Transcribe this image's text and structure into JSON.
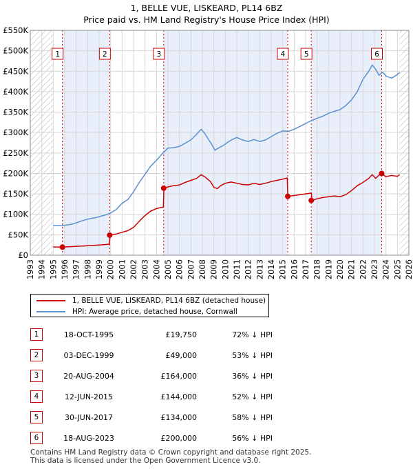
{
  "chart_data": {
    "type": "line",
    "title": "1, BELLE VUE, LISKEARD, PL14 6BZ",
    "subtitle": "Price paid vs. HM Land Registry's House Price Index (HPI)",
    "xlim": [
      1993,
      2026
    ],
    "ylim": [
      0,
      550000
    ],
    "x_ticks": [
      1993,
      1994,
      1995,
      1996,
      1997,
      1998,
      1999,
      2000,
      2001,
      2002,
      2003,
      2004,
      2005,
      2006,
      2007,
      2008,
      2009,
      2010,
      2011,
      2012,
      2013,
      2014,
      2015,
      2016,
      2017,
      2018,
      2019,
      2020,
      2021,
      2022,
      2023,
      2024,
      2025,
      2026
    ],
    "y_ticks": [
      {
        "value": 0,
        "label": "£0"
      },
      {
        "value": 50000,
        "label": "£50K"
      },
      {
        "value": 100000,
        "label": "£100K"
      },
      {
        "value": 150000,
        "label": "£150K"
      },
      {
        "value": 200000,
        "label": "£200K"
      },
      {
        "value": 250000,
        "label": "£250K"
      },
      {
        "value": 300000,
        "label": "£300K"
      },
      {
        "value": 350000,
        "label": "£350K"
      },
      {
        "value": 400000,
        "label": "£400K"
      },
      {
        "value": 450000,
        "label": "£450K"
      },
      {
        "value": 500000,
        "label": "£500K"
      },
      {
        "value": 550000,
        "label": "£550K"
      }
    ],
    "hatched_ranges": [
      [
        1993,
        1995.0
      ],
      [
        2025.2,
        2026
      ]
    ],
    "shaded_ranges": [
      [
        1995.8,
        1999.9
      ],
      [
        2004.6,
        2015.4
      ],
      [
        2017.5,
        2023.6
      ]
    ],
    "series": [
      {
        "name": "1, BELLE VUE, LISKEARD, PL14 6BZ (detached house)",
        "color": "#cc0000",
        "x": [
          1995.0,
          1995.8,
          1996.5,
          1997.5,
          1998.5,
          1999.5,
          1999.9,
          1999.95,
          2000.5,
          2001.0,
          2001.5,
          2002.0,
          2002.5,
          2003.0,
          2003.5,
          2004.0,
          2004.6,
          2004.65,
          2005.0,
          2005.5,
          2006.0,
          2006.5,
          2007.0,
          2007.5,
          2007.9,
          2008.3,
          2008.7,
          2009.0,
          2009.3,
          2009.6,
          2010.0,
          2010.5,
          2011.0,
          2011.5,
          2012.0,
          2012.5,
          2013.0,
          2013.5,
          2014.0,
          2014.5,
          2015.0,
          2015.4,
          2015.45,
          2016.0,
          2016.5,
          2017.0,
          2017.5,
          2017.55,
          2018.0,
          2018.5,
          2019.0,
          2019.5,
          2020.0,
          2020.5,
          2021.0,
          2021.5,
          2022.0,
          2022.5,
          2022.8,
          2023.1,
          2023.4,
          2023.6,
          2024.0,
          2024.5,
          2025.0,
          2025.2
        ],
        "values": [
          20000,
          19750,
          21000,
          22500,
          24000,
          26000,
          27000,
          49000,
          52000,
          56000,
          60000,
          68000,
          83000,
          97000,
          108000,
          114000,
          118000,
          164000,
          167000,
          170000,
          172000,
          178000,
          183000,
          188000,
          197000,
          190000,
          180000,
          166000,
          163000,
          170000,
          176000,
          179000,
          176000,
          173000,
          172000,
          176000,
          173000,
          176000,
          180000,
          183000,
          186000,
          189000,
          144000,
          146000,
          148000,
          150000,
          152000,
          134000,
          138000,
          141000,
          143000,
          145000,
          143000,
          148000,
          158000,
          170000,
          178000,
          188000,
          197000,
          188000,
          196000,
          200000,
          192000,
          195000,
          193000,
          197000
        ]
      },
      {
        "name": "HPI: Average price, detached house, Cornwall",
        "color": "#5a8fd0",
        "x": [
          1995.0,
          1995.8,
          1996.5,
          1997.0,
          1997.5,
          1998.0,
          1998.5,
          1999.0,
          1999.5,
          2000.0,
          2000.5,
          2001.0,
          2001.5,
          2002.0,
          2002.5,
          2003.0,
          2003.5,
          2004.0,
          2004.5,
          2005.0,
          2005.5,
          2006.0,
          2006.5,
          2007.0,
          2007.5,
          2007.9,
          2008.2,
          2008.5,
          2008.8,
          2009.1,
          2009.4,
          2009.8,
          2010.2,
          2010.6,
          2011.0,
          2011.5,
          2012.0,
          2012.5,
          2013.0,
          2013.5,
          2014.0,
          2014.5,
          2015.0,
          2015.5,
          2016.0,
          2016.5,
          2017.0,
          2017.5,
          2018.0,
          2018.5,
          2019.0,
          2019.5,
          2020.0,
          2020.5,
          2021.0,
          2021.5,
          2022.0,
          2022.5,
          2022.8,
          2023.1,
          2023.4,
          2023.7,
          2024.0,
          2024.5,
          2024.9,
          2025.2
        ],
        "values": [
          72000,
          72500,
          75000,
          79000,
          84000,
          88000,
          91000,
          94000,
          98000,
          103000,
          112000,
          127000,
          136000,
          155000,
          178000,
          198000,
          218000,
          232000,
          248000,
          262000,
          263000,
          266000,
          274000,
          282000,
          296000,
          308000,
          298000,
          285000,
          272000,
          257000,
          262000,
          268000,
          276000,
          283000,
          288000,
          282000,
          278000,
          283000,
          278000,
          282000,
          290000,
          298000,
          304000,
          303000,
          308000,
          315000,
          322000,
          329000,
          335000,
          340000,
          347000,
          352000,
          356000,
          366000,
          380000,
          400000,
          430000,
          450000,
          465000,
          455000,
          440000,
          448000,
          438000,
          433000,
          440000,
          447000
        ]
      }
    ],
    "sales": [
      {
        "n": "1",
        "x": 1995.8,
        "price": 19750
      },
      {
        "n": "2",
        "x": 1999.92,
        "price": 49000
      },
      {
        "n": "3",
        "x": 2004.63,
        "price": 164000
      },
      {
        "n": "4",
        "x": 2015.44,
        "price": 144000
      },
      {
        "n": "5",
        "x": 2017.49,
        "price": 134000
      },
      {
        "n": "6",
        "x": 2023.63,
        "price": 200000
      }
    ]
  },
  "legend": {
    "property": "1, BELLE VUE, LISKEARD, PL14 6BZ (detached house)",
    "hpi": "HPI: Average price, detached house, Cornwall"
  },
  "table": [
    {
      "n": "1",
      "date": "18-OCT-1995",
      "price": "£19,750",
      "hpi": "72% ↓ HPI"
    },
    {
      "n": "2",
      "date": "03-DEC-1999",
      "price": "£49,000",
      "hpi": "53% ↓ HPI"
    },
    {
      "n": "3",
      "date": "20-AUG-2004",
      "price": "£164,000",
      "hpi": "36% ↓ HPI"
    },
    {
      "n": "4",
      "date": "12-JUN-2015",
      "price": "£144,000",
      "hpi": "52% ↓ HPI"
    },
    {
      "n": "5",
      "date": "30-JUN-2017",
      "price": "£134,000",
      "hpi": "58% ↓ HPI"
    },
    {
      "n": "6",
      "date": "18-AUG-2023",
      "price": "£200,000",
      "hpi": "56% ↓ HPI"
    }
  ],
  "footer": {
    "line1": "Contains HM Land Registry data © Crown copyright and database right 2025.",
    "line2": "This data is licensed under the Open Government Licence v3.0."
  },
  "colors": {
    "property": "#cc0000",
    "hpi": "#5a8fd0",
    "shade": "#e8eefa",
    "grid": "#d7d7d7"
  }
}
